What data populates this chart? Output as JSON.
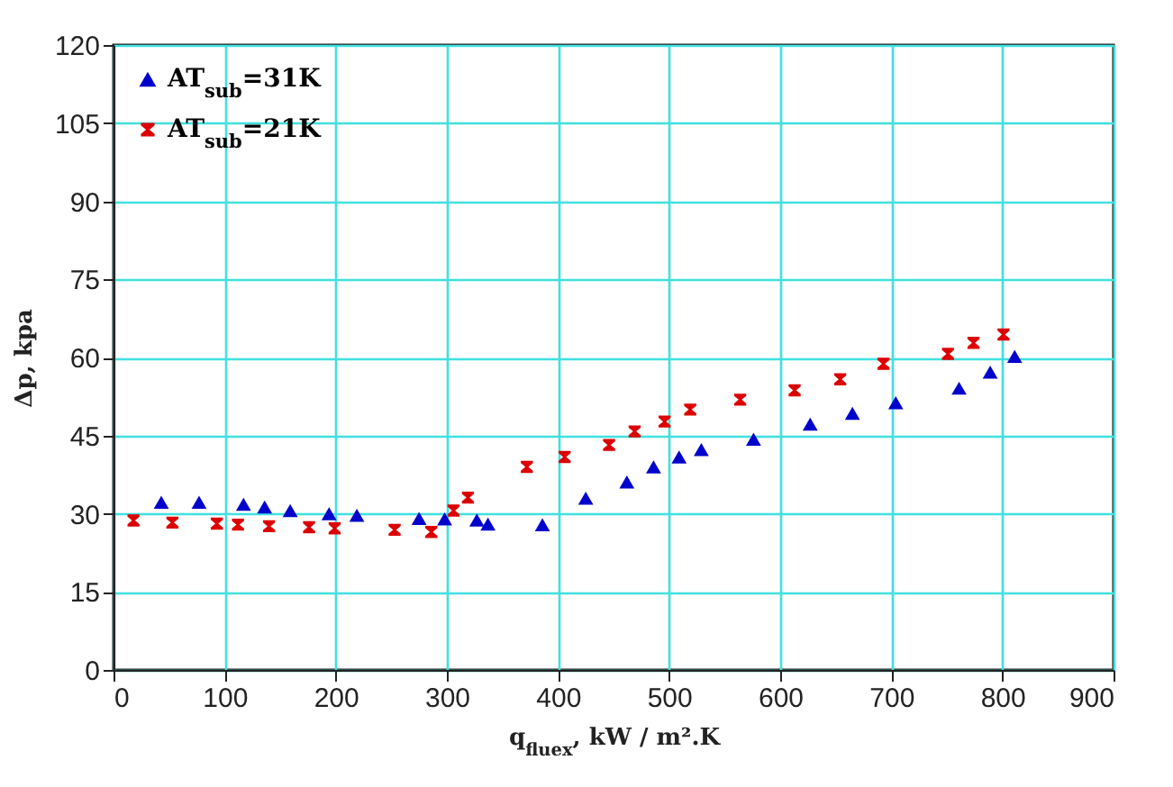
{
  "chart_data": {
    "type": "scatter",
    "xlabel": "q$_{fluex}$, kW / m².K",
    "ylabel": "Δp, kpa",
    "xlim": [
      0,
      900
    ],
    "xticks": [
      0,
      100,
      200,
      300,
      400,
      500,
      600,
      700,
      800,
      900
    ],
    "ylim": [
      0,
      120
    ],
    "yticks": [
      0,
      15,
      30,
      45,
      60,
      75,
      90,
      105,
      120
    ],
    "grid": true,
    "legend": "top left",
    "series": [
      {
        "name": "AT$_{sub}$=31K",
        "color": "#0000cc",
        "marker": "triangle",
        "x": [
          43,
          77,
          117,
          136,
          159,
          194,
          219,
          275,
          298,
          327,
          337,
          386,
          425,
          462,
          486,
          509,
          529,
          576,
          627,
          665,
          704,
          761,
          789,
          811
        ],
        "values": [
          32.2,
          32.2,
          31.8,
          31.3,
          30.6,
          30,
          29.7,
          29.1,
          29,
          28.8,
          28,
          27.9,
          33,
          36.1,
          39,
          40.9,
          42.3,
          44.3,
          47.2,
          49.3,
          51.3,
          54.1,
          57.2,
          60.2
        ]
      },
      {
        "name": "AT$_{sub}$=21K",
        "color": "#dd0000",
        "x": [
          18,
          53,
          93,
          112,
          140,
          176,
          199,
          253,
          286,
          306,
          319,
          372,
          406,
          446,
          469,
          496,
          519,
          564,
          613,
          654,
          693,
          751,
          774,
          801
        ],
        "values": [
          28.7,
          28.3,
          28.1,
          27.9,
          27.6,
          27.4,
          27.2,
          26.9,
          26.5,
          30.6,
          33.1,
          39,
          40.9,
          43.2,
          45.8,
          47.7,
          50,
          51.9,
          53.7,
          55.8,
          58.8,
          60.7,
          62.8,
          64.4
        ]
      }
    ]
  }
}
